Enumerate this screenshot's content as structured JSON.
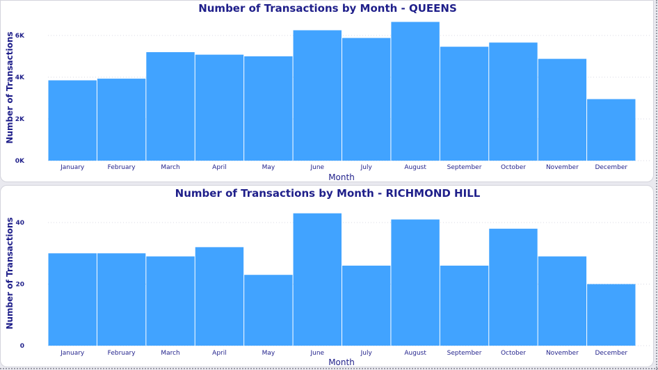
{
  "chart_data": [
    {
      "type": "bar",
      "title": "Number of Transactions by Month - QUEENS",
      "xlabel": "Month",
      "ylabel": "Number of Transactions",
      "categories": [
        "January",
        "February",
        "March",
        "April",
        "May",
        "June",
        "July",
        "August",
        "September",
        "October",
        "November",
        "December"
      ],
      "values": [
        3850,
        3930,
        5200,
        5080,
        5000,
        6250,
        5880,
        6650,
        5460,
        5660,
        4880,
        2950
      ],
      "ylim": [
        0,
        7000
      ],
      "yticks": [
        0,
        2000,
        4000,
        6000
      ],
      "ytick_labels": [
        "0K",
        "2K",
        "4K",
        "6K"
      ],
      "grid": true,
      "colors": {
        "bar": "#41a3ff",
        "title": "#1f1f8a",
        "axis_label": "#1f1f8a",
        "tick": "#1f1f8a"
      }
    },
    {
      "type": "bar",
      "title": "Number of Transactions by Month - RICHMOND HILL",
      "xlabel": "Month",
      "ylabel": "Number of Transactions",
      "categories": [
        "January",
        "February",
        "March",
        "April",
        "May",
        "June",
        "July",
        "August",
        "September",
        "October",
        "November",
        "December"
      ],
      "values": [
        30,
        30,
        29,
        32,
        23,
        43,
        26,
        41,
        26,
        38,
        29,
        20
      ],
      "ylim": [
        0,
        47
      ],
      "yticks": [
        0,
        20,
        40
      ],
      "ytick_labels": [
        "0",
        "20",
        "40"
      ],
      "grid": true,
      "colors": {
        "bar": "#41a3ff",
        "title": "#1f1f8a",
        "axis_label": "#1f1f8a",
        "tick": "#1f1f8a"
      }
    }
  ]
}
